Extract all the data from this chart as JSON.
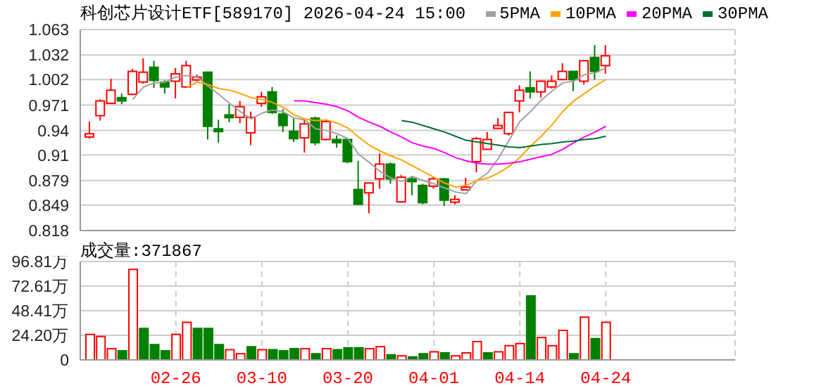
{
  "chart_data": [
    {
      "type": "candlestick",
      "title": "科创芯片设计ETF[589170] 2026-04-24 15:00",
      "legend": "top",
      "tick_labels": "y",
      "grid": true,
      "marker": "none",
      "categories": [
        null,
        null,
        null,
        null,
        null,
        null,
        null,
        null,
        null,
        null,
        null,
        null,
        null,
        null,
        null,
        null,
        null,
        null,
        null,
        null,
        null,
        null,
        null,
        null,
        null,
        null,
        null,
        null,
        null,
        null,
        null,
        null,
        null,
        null,
        null,
        null,
        null,
        null,
        null,
        null,
        null,
        null,
        null,
        null,
        null,
        null,
        null,
        null,
        null
      ],
      "ylim": [
        0.818,
        1.063
      ],
      "yticks": [
        0.818,
        0.849,
        0.879,
        0.91,
        0.94,
        0.971,
        1.002,
        1.032,
        1.063
      ],
      "ohlc": [
        [
          0.932,
          0.951,
          0.93,
          0.936
        ],
        [
          0.958,
          0.978,
          0.952,
          0.976
        ],
        [
          0.973,
          1.003,
          0.973,
          0.989
        ],
        [
          0.98,
          0.985,
          0.972,
          0.976
        ],
        [
          0.984,
          1.015,
          0.983,
          1.012
        ],
        [
          0.999,
          1.028,
          0.997,
          1.011
        ],
        [
          1.017,
          1.025,
          0.992,
          1.001
        ],
        [
          0.999,
          1.001,
          0.985,
          0.993
        ],
        [
          1.0,
          1.016,
          0.979,
          1.009
        ],
        [
          0.993,
          1.025,
          0.992,
          1.019
        ],
        [
          1.003,
          1.008,
          1.0,
          1.005
        ],
        [
          1.011,
          1.011,
          0.929,
          0.945
        ],
        [
          0.942,
          0.953,
          0.925,
          0.94
        ],
        [
          0.959,
          0.972,
          0.95,
          0.958
        ],
        [
          0.956,
          0.976,
          0.949,
          0.969
        ],
        [
          0.937,
          0.963,
          0.922,
          0.956
        ],
        [
          0.973,
          0.987,
          0.969,
          0.981
        ],
        [
          0.987,
          0.993,
          0.96,
          0.962
        ],
        [
          0.96,
          0.966,
          0.938,
          0.946
        ],
        [
          0.939,
          0.955,
          0.926,
          0.93
        ],
        [
          0.931,
          0.955,
          0.913,
          0.948
        ],
        [
          0.955,
          0.957,
          0.922,
          0.925
        ],
        [
          0.929,
          0.953,
          0.928,
          0.951
        ],
        [
          0.929,
          0.934,
          0.919,
          0.925
        ],
        [
          0.929,
          0.929,
          0.9,
          0.902
        ],
        [
          0.868,
          0.903,
          0.849,
          0.85
        ],
        [
          0.864,
          0.876,
          0.839,
          0.876
        ],
        [
          0.881,
          0.912,
          0.869,
          0.899
        ],
        [
          0.899,
          0.901,
          0.875,
          0.881
        ],
        [
          0.853,
          0.886,
          0.852,
          0.883
        ],
        [
          0.881,
          0.883,
          0.861,
          0.88
        ],
        [
          0.873,
          0.875,
          0.85,
          0.852
        ],
        [
          0.872,
          0.883,
          0.869,
          0.881
        ],
        [
          0.881,
          0.882,
          0.848,
          0.855
        ],
        [
          0.855,
          0.861,
          0.85,
          0.856
        ],
        [
          0.868,
          0.882,
          0.867,
          0.871
        ],
        [
          0.902,
          0.932,
          0.889,
          0.93
        ],
        [
          0.917,
          0.938,
          0.917,
          0.929
        ],
        [
          0.945,
          0.955,
          0.942,
          0.946
        ],
        [
          0.936,
          0.962,
          0.934,
          0.962
        ],
        [
          0.976,
          0.995,
          0.962,
          0.989
        ],
        [
          0.992,
          1.012,
          0.979,
          0.987
        ],
        [
          0.987,
          1.001,
          0.98,
          1.0
        ],
        [
          0.993,
          1.007,
          0.991,
          1.0
        ],
        [
          1.002,
          1.022,
          1.002,
          1.012
        ],
        [
          1.012,
          1.012,
          0.988,
          1.002
        ],
        [
          1.0,
          1.025,
          0.996,
          1.025
        ],
        [
          1.029,
          1.044,
          1.002,
          1.012
        ],
        [
          1.019,
          1.044,
          1.009,
          1.031
        ]
      ],
      "colors": [
        "#ff0000",
        "#ff0000",
        "#ff0000",
        "#008000",
        "#ff0000",
        "#ff0000",
        "#008000",
        "#008000",
        "#ff0000",
        "#ff0000",
        "#ff0000",
        "#008000",
        "#008000",
        "#008000",
        "#ff0000",
        "#ff0000",
        "#ff0000",
        "#008000",
        "#008000",
        "#008000",
        "#ff0000",
        "#008000",
        "#ff0000",
        "#008000",
        "#008000",
        "#008000",
        "#ff0000",
        "#ff0000",
        "#008000",
        "#ff0000",
        "#008000",
        "#008000",
        "#ff0000",
        "#008000",
        "#ff0000",
        "#ff0000",
        "#ff0000",
        "#ff0000",
        "#ff0000",
        "#ff0000",
        "#ff0000",
        "#008000",
        "#ff0000",
        "#ff0000",
        "#ff0000",
        "#008000",
        "#ff0000",
        "#008000",
        "#ff0000"
      ],
      "series": [
        {
          "type": "line",
          "name": "5PMA",
          "color": "#a0a0a0",
          "values": [
            null,
            null,
            null,
            null,
            0.978,
            0.993,
            0.998,
            0.999,
            1.005,
            1.007,
            1.005,
            0.994,
            0.984,
            0.973,
            0.963,
            0.954,
            0.961,
            0.965,
            0.963,
            0.955,
            0.953,
            0.942,
            0.94,
            0.936,
            0.93,
            0.911,
            0.901,
            0.89,
            0.882,
            0.878,
            0.884,
            0.879,
            0.875,
            0.87,
            0.865,
            0.863,
            0.879,
            0.888,
            0.906,
            0.928,
            0.951,
            0.963,
            0.977,
            0.988,
            0.998,
            1.0,
            1.008,
            1.01,
            1.016
          ]
        },
        {
          "type": "line",
          "name": "10PMA",
          "color": "#ffa500",
          "values": [
            null,
            null,
            null,
            null,
            null,
            null,
            null,
            null,
            null,
            0.992,
            0.999,
            0.996,
            0.991,
            0.989,
            0.985,
            0.98,
            0.978,
            0.974,
            0.968,
            0.959,
            0.954,
            0.952,
            0.953,
            0.949,
            0.943,
            0.932,
            0.922,
            0.915,
            0.909,
            0.904,
            0.897,
            0.89,
            0.883,
            0.876,
            0.871,
            0.873,
            0.879,
            0.882,
            0.888,
            0.896,
            0.907,
            0.921,
            0.933,
            0.947,
            0.963,
            0.976,
            0.985,
            0.994,
            1.002
          ]
        },
        {
          "type": "line",
          "name": "20PMA",
          "color": "#ff00ff",
          "values": [
            null,
            null,
            null,
            null,
            null,
            null,
            null,
            null,
            null,
            null,
            null,
            null,
            null,
            null,
            null,
            null,
            null,
            null,
            null,
            0.976,
            0.976,
            0.974,
            0.972,
            0.969,
            0.964,
            0.956,
            0.95,
            0.945,
            0.938,
            0.932,
            0.925,
            0.921,
            0.918,
            0.913,
            0.907,
            0.903,
            0.9,
            0.899,
            0.899,
            0.9,
            0.902,
            0.905,
            0.908,
            0.911,
            0.917,
            0.925,
            0.932,
            0.938,
            0.945
          ]
        },
        {
          "type": "line",
          "name": "30PMA",
          "color": "#006f2e",
          "values": [
            null,
            null,
            null,
            null,
            null,
            null,
            null,
            null,
            null,
            null,
            null,
            null,
            null,
            null,
            null,
            null,
            null,
            null,
            null,
            null,
            null,
            null,
            null,
            null,
            null,
            null,
            null,
            null,
            null,
            0.952,
            0.95,
            0.946,
            0.942,
            0.938,
            0.933,
            0.928,
            0.926,
            0.924,
            0.922,
            0.92,
            0.919,
            0.921,
            0.923,
            0.924,
            0.926,
            0.927,
            0.929,
            0.93,
            0.933
          ]
        }
      ]
    },
    {
      "type": "bar",
      "title": "成交量:371867",
      "grid": true,
      "categories": [
        null,
        null,
        null,
        null,
        null,
        null,
        null,
        null,
        "02-26",
        null,
        null,
        null,
        null,
        null,
        null,
        null,
        "03-10",
        null,
        null,
        null,
        null,
        null,
        null,
        null,
        "03-20",
        null,
        null,
        null,
        null,
        null,
        null,
        null,
        "04-01",
        null,
        null,
        null,
        null,
        null,
        null,
        null,
        "04-14",
        null,
        null,
        null,
        null,
        null,
        null,
        null,
        "04-24"
      ],
      "ylim": [
        0,
        96.81
      ],
      "yticks": [
        0,
        {
          "value": 24.2,
          "label": "24.20万"
        },
        {
          "value": 48.41,
          "label": "48.41万"
        },
        {
          "value": 72.61,
          "label": "72.61万"
        },
        {
          "value": 96.81,
          "label": "96.81万"
        }
      ],
      "values": [
        25,
        23,
        11,
        9,
        89,
        31,
        15,
        9,
        25,
        37,
        31,
        31,
        15,
        10,
        6,
        13,
        10,
        10,
        9,
        11,
        11,
        6,
        11,
        10,
        12,
        12,
        11,
        13,
        5,
        4,
        3,
        6,
        8,
        7,
        4,
        7,
        18,
        7,
        8,
        14,
        16,
        63,
        22,
        14,
        29,
        6,
        42,
        21,
        37
      ],
      "colors": [
        "#ff0000",
        "#ff0000",
        "#ff0000",
        "#008000",
        "#ff0000",
        "#008000",
        "#008000",
        "#008000",
        "#ff0000",
        "#ff0000",
        "#008000",
        "#008000",
        "#008000",
        "#ff0000",
        "#ff0000",
        "#008000",
        "#ff0000",
        "#008000",
        "#008000",
        "#008000",
        "#ff0000",
        "#008000",
        "#ff0000",
        "#008000",
        "#008000",
        "#008000",
        "#ff0000",
        "#ff0000",
        "#008000",
        "#ff0000",
        "#008000",
        "#008000",
        "#ff0000",
        "#008000",
        "#ff0000",
        "#ff0000",
        "#ff0000",
        "#008000",
        "#ff0000",
        "#ff0000",
        "#ff0000",
        "#008000",
        "#ff0000",
        "#ff0000",
        "#ff0000",
        "#008000",
        "#ff0000",
        "#008000",
        "#ff0000"
      ]
    }
  ]
}
